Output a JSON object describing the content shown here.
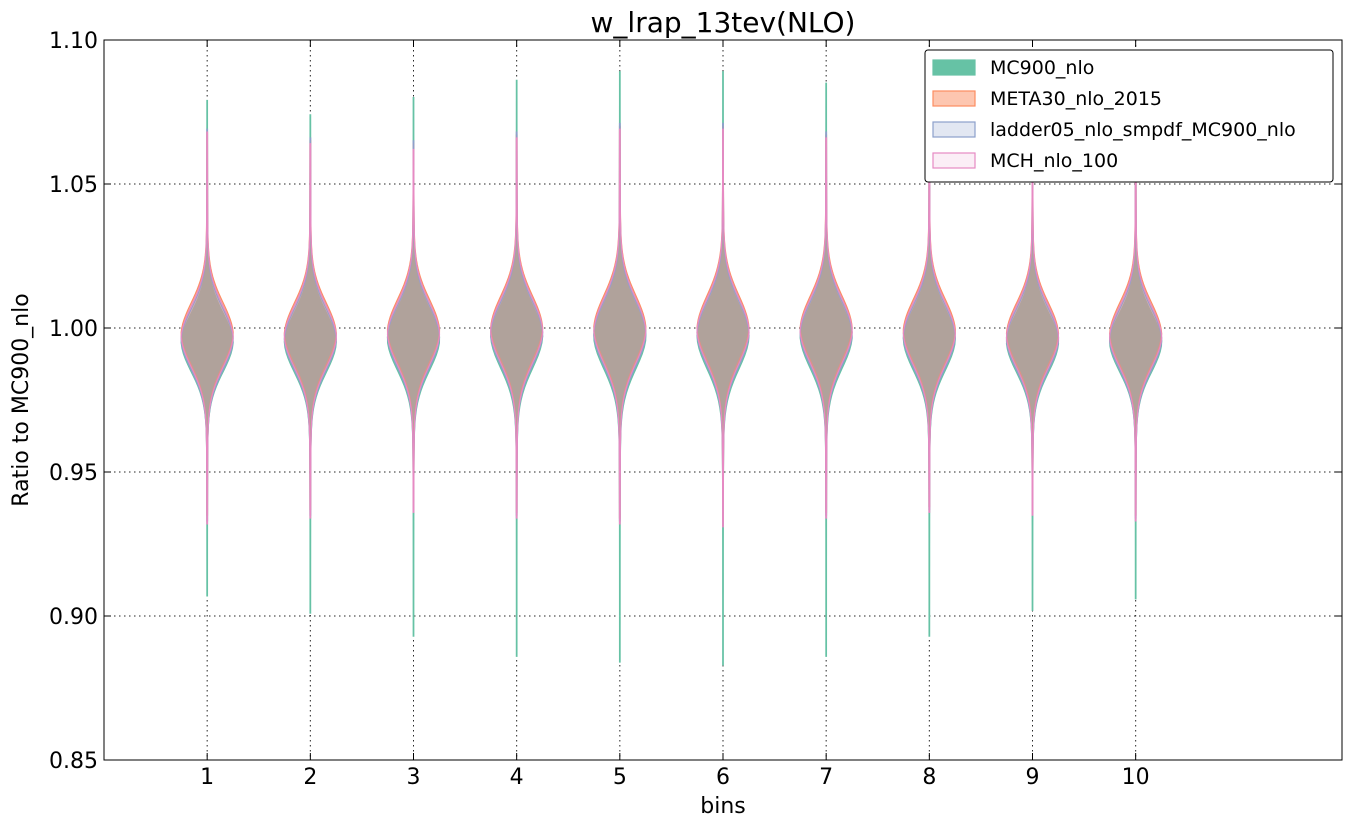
{
  "chart_data": {
    "type": "violin",
    "title": "w_lrap_13tev(NLO)",
    "xlabel": "bins",
    "ylabel": "Ratio to MC900_nlo",
    "categories": [
      "1",
      "2",
      "3",
      "4",
      "5",
      "6",
      "7",
      "8",
      "9",
      "10"
    ],
    "xlim": [
      0,
      12
    ],
    "ylim": [
      0.85,
      1.1
    ],
    "yticks": [
      "0.85",
      "0.90",
      "0.95",
      "1.00",
      "1.05",
      "1.10"
    ],
    "grid": true,
    "legend_position": "top-right",
    "series": [
      {
        "name": "MC900_nlo",
        "color": "#66c2a5",
        "fill_opacity": 1.0,
        "center": [
          0.995,
          0.995,
          0.996,
          0.997,
          0.997,
          0.997,
          0.997,
          0.996,
          0.995,
          0.995
        ],
        "min": [
          0.907,
          0.901,
          0.893,
          0.886,
          0.884,
          0.883,
          0.886,
          0.893,
          0.902,
          0.906
        ],
        "max": [
          1.079,
          1.074,
          1.08,
          1.086,
          1.089,
          1.089,
          1.085,
          1.079,
          1.072,
          1.074
        ],
        "sigma": [
          0.0105,
          0.0107,
          0.011,
          0.0113,
          0.0115,
          0.0115,
          0.0113,
          0.011,
          0.0107,
          0.0105
        ]
      },
      {
        "name": "META30_nlo_2015",
        "color": "#fc8d62",
        "fill_opacity": 0.5,
        "center": [
          0.998,
          0.998,
          0.999,
          1.0,
          1.0,
          1.0,
          1.0,
          0.999,
          0.998,
          0.998
        ],
        "min": [
          0.935,
          0.937,
          0.938,
          0.936,
          0.934,
          0.933,
          0.936,
          0.938,
          0.937,
          0.935
        ],
        "max": [
          1.068,
          1.065,
          1.064,
          1.067,
          1.07,
          1.07,
          1.067,
          1.064,
          1.062,
          1.064
        ],
        "sigma": [
          0.011,
          0.011,
          0.0112,
          0.0114,
          0.0116,
          0.0116,
          0.0114,
          0.0112,
          0.011,
          0.011
        ]
      },
      {
        "name": "ladder05_nlo_smpdf_MC900_nlo",
        "color": "#8da0cb",
        "fill_opacity": 0.25,
        "center": [
          0.996,
          0.996,
          0.997,
          0.998,
          0.998,
          0.998,
          0.998,
          0.997,
          0.996,
          0.996
        ],
        "min": [
          0.933,
          0.935,
          0.937,
          0.935,
          0.933,
          0.932,
          0.935,
          0.937,
          0.936,
          0.934
        ],
        "max": [
          1.069,
          1.066,
          1.065,
          1.068,
          1.071,
          1.071,
          1.068,
          1.065,
          1.063,
          1.065
        ],
        "sigma": [
          0.0108,
          0.0109,
          0.0111,
          0.0113,
          0.0115,
          0.0115,
          0.0113,
          0.0111,
          0.0109,
          0.0108
        ]
      },
      {
        "name": "MCH_nlo_100",
        "color": "#e78ac3",
        "fill_opacity": 0.15,
        "center": [
          0.997,
          0.997,
          0.998,
          0.999,
          0.999,
          0.999,
          0.999,
          0.998,
          0.997,
          0.997
        ],
        "min": [
          0.932,
          0.934,
          0.936,
          0.934,
          0.932,
          0.931,
          0.934,
          0.936,
          0.935,
          0.933
        ],
        "max": [
          1.068,
          1.064,
          1.062,
          1.066,
          1.069,
          1.069,
          1.066,
          1.063,
          1.061,
          1.063
        ],
        "sigma": [
          0.0109,
          0.011,
          0.0112,
          0.0114,
          0.0116,
          0.0116,
          0.0114,
          0.0112,
          0.011,
          0.0109
        ]
      }
    ]
  }
}
